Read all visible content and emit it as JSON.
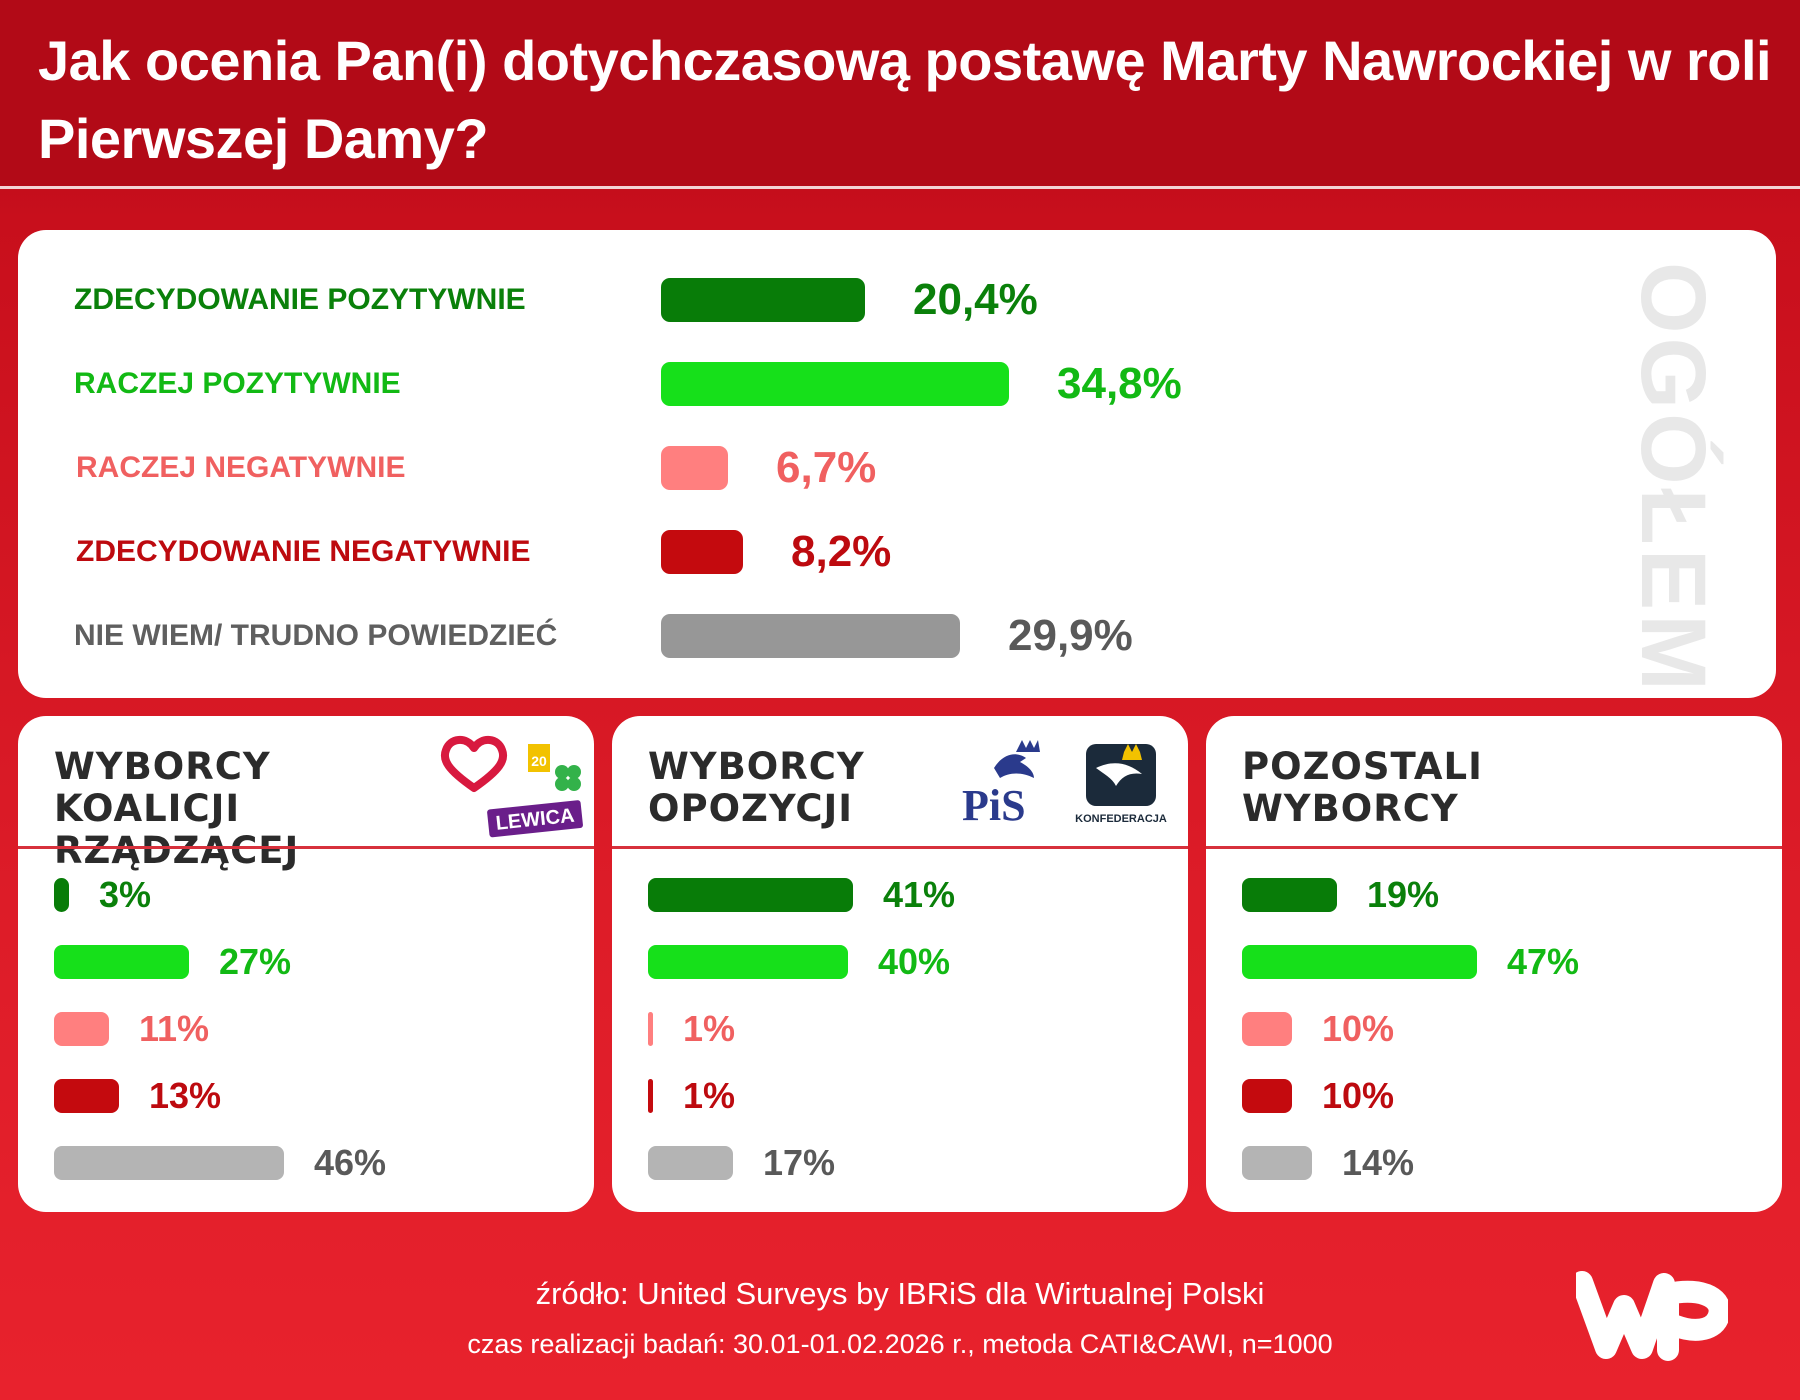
{
  "header": {
    "title": "Jak ocenia Pan(i) dotychczasową postawę Marty Nawrockiej w roli Pierwszej Damy?"
  },
  "main": {
    "side_label": "OGÓŁEM"
  },
  "colors": {
    "zdecydowanie_pozytywnie": "#087c08",
    "raczej_pozytywnie": "#16e01a",
    "raczej_negatywnie": "#ff7f7f",
    "zdecydowanie_negatywnie": "#c40a0e",
    "nie_wiem": "#979797",
    "nie_wiem_sub": "#b4b4b4",
    "label_zp": "#0a800a",
    "label_rp": "#12b914",
    "label_rn": "#f06060",
    "label_zn": "#bd0a0f",
    "label_nw": "#5f5f5f",
    "val_zp": "#0a800a",
    "val_rp": "#12b914",
    "val_rn": "#f06060",
    "val_zn": "#bd0a0f",
    "val_nw": "#595959"
  },
  "chart_data": [
    {
      "type": "bar",
      "title": "OGÓŁEM",
      "categories": [
        "ZDECYDOWANIE POZYTYWNIE",
        "RACZEJ POZYTYWNIE",
        "RACZEJ NEGATYWNIE",
        "ZDECYDOWANIE NEGATYWNIE",
        "NIE WIEM/ TRUDNO POWIEDZIEĆ"
      ],
      "values": [
        20.4,
        34.8,
        6.7,
        8.2,
        29.9
      ],
      "value_labels": [
        "20,4%",
        "34,8%",
        "6,7%",
        "8,2%",
        "29,9%"
      ],
      "orientation": "horizontal"
    },
    {
      "type": "bar",
      "title": "WYBORCY KOALICJI RZĄDZĄCEJ",
      "logo_text": "LEWICA",
      "categories": [
        "ZDECYDOWANIE POZYTYWNIE",
        "RACZEJ POZYTYWNIE",
        "RACZEJ NEGATYWNIE",
        "ZDECYDOWANIE NEGATYWNIE",
        "NIE WIEM/ TRUDNO POWIEDZIEĆ"
      ],
      "values": [
        3,
        27,
        11,
        13,
        46
      ],
      "value_labels": [
        "3%",
        "27%",
        "11%",
        "13%",
        "46%"
      ],
      "orientation": "horizontal"
    },
    {
      "type": "bar",
      "title": "WYBORCY OPOZYCJI",
      "logo_text_pis": "PiS",
      "logo_text_konf": "KONFEDERACJA",
      "categories": [
        "ZDECYDOWANIE POZYTYWNIE",
        "RACZEJ POZYTYWNIE",
        "RACZEJ NEGATYWNIE",
        "ZDECYDOWANIE NEGATYWNIE",
        "NIE WIEM/ TRUDNO POWIEDZIEĆ"
      ],
      "values": [
        41,
        40,
        1,
        1,
        17
      ],
      "value_labels": [
        "41%",
        "40%",
        "1%",
        "1%",
        "17%"
      ],
      "orientation": "horizontal"
    },
    {
      "type": "bar",
      "title": "POZOSTALI WYBORCY",
      "categories": [
        "ZDECYDOWANIE POZYTYWNIE",
        "RACZEJ POZYTYWNIE",
        "RACZEJ NEGATYWNIE",
        "ZDECYDOWANIE NEGATYWNIE",
        "NIE WIEM/ TRUDNO POWIEDZIEĆ"
      ],
      "values": [
        19,
        47,
        10,
        10,
        14
      ],
      "value_labels": [
        "19%",
        "47%",
        "10%",
        "10%",
        "14%"
      ],
      "orientation": "horizontal"
    }
  ],
  "footer": {
    "source": "źródło: United Surveys by IBRiS dla Wirtualnej Polski",
    "meta": "czas realizacji badań: 30.01-01.02.2026 r., metoda CATI&CAWI, n=1000"
  }
}
